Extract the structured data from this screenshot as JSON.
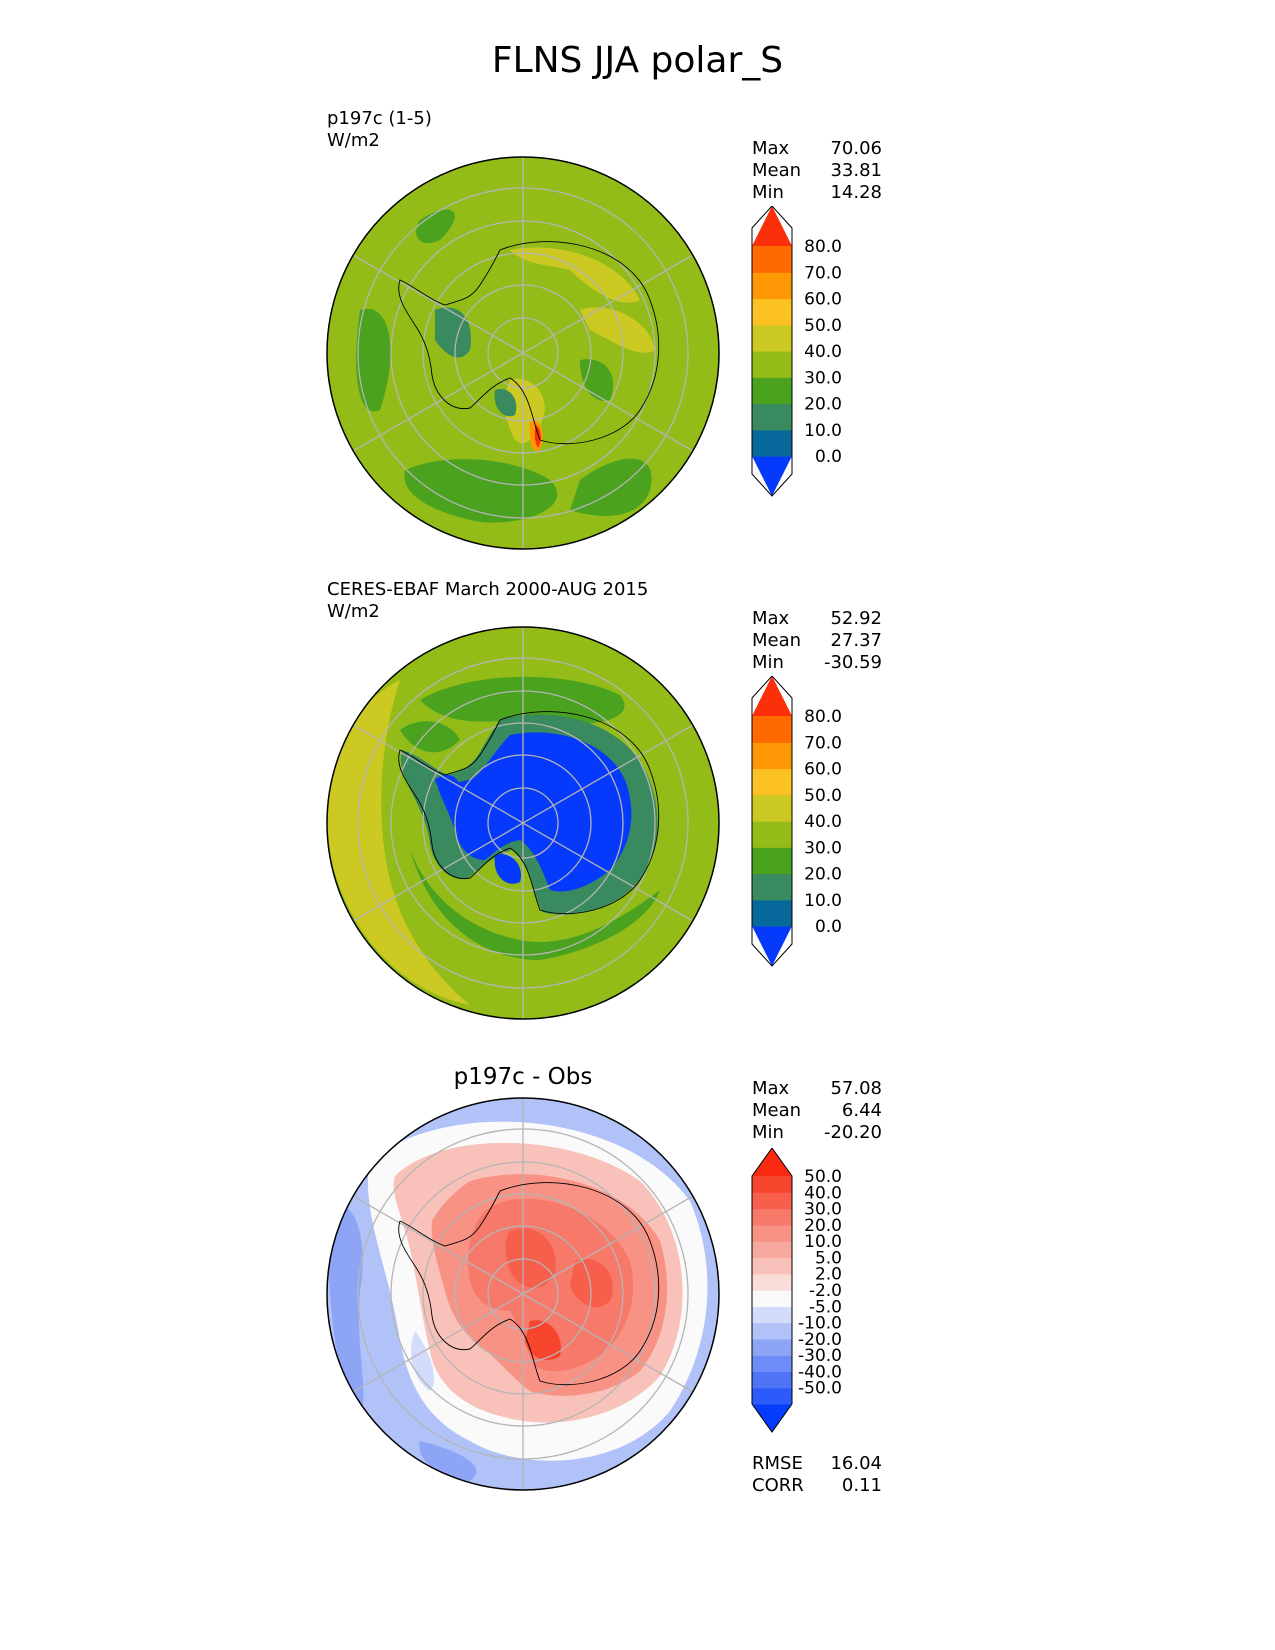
{
  "title": "FLNS JJA polar_S",
  "colors": {
    "coast": "#000000",
    "grid": "#b5b5b5",
    "outline": "#000000",
    "abs_scale": [
      "#0539fb",
      "#07689b",
      "#3a8a60",
      "#4aa21e",
      "#93bc18",
      "#cdc923",
      "#fcc123",
      "#fe9905",
      "#ff6a00",
      "#fc2f0b"
    ],
    "diff_scale": [
      "#043cfd",
      "#2d5afa",
      "#4f74f8",
      "#6e8cf7",
      "#8ea5f6",
      "#b1c2f8",
      "#d3dcfb",
      "#fafafa",
      "#fadcd8",
      "#f8c2ba",
      "#f8a99f",
      "#f79284",
      "#f6796a",
      "#f75e4b",
      "#f8452e",
      "#fa2a10"
    ]
  },
  "chart_data": [
    {
      "type": "heatmap",
      "projection": "south-polar-stereographic",
      "title": "p197c (1-5)",
      "units": "W/m2",
      "stats": {
        "max": "70.06",
        "mean": "33.81",
        "min": "14.28"
      },
      "colorbar": {
        "levels": [
          "0.0",
          "10.0",
          "20.0",
          "30.0",
          "40.0",
          "50.0",
          "60.0",
          "70.0",
          "80.0"
        ],
        "extend": "both"
      },
      "field": {
        "dominant_range": "30-40",
        "continent_range": "30-50",
        "notable": "local maximum 60-70 near Antarctic Peninsula base / Ross Sea coast"
      }
    },
    {
      "type": "heatmap",
      "projection": "south-polar-stereographic",
      "title": "CERES-EBAF March 2000-AUG 2015",
      "units": "W/m2",
      "stats": {
        "max": "52.92",
        "mean": "27.37",
        "min": "-30.59"
      },
      "colorbar": {
        "levels": [
          "0.0",
          "10.0",
          "20.0",
          "30.0",
          "40.0",
          "50.0",
          "60.0",
          "70.0",
          "80.0"
        ],
        "extend": "both"
      },
      "field": {
        "dominant_range": "30-40",
        "continent_range": "below 0 to 20",
        "notable": "40-50 band over South Atlantic / Indian Ocean sector"
      }
    },
    {
      "type": "heatmap",
      "projection": "south-polar-stereographic",
      "title": "p197c - Obs",
      "units": "",
      "stats": {
        "max": "57.08",
        "mean": "6.44",
        "min": "-20.20"
      },
      "metrics": {
        "rmse_label": "RMSE",
        "rmse": "16.04",
        "corr_label": "CORR",
        "corr": "0.11"
      },
      "colorbar": {
        "levels": [
          "-50.0",
          "-40.0",
          "-30.0",
          "-20.0",
          "-10.0",
          "-5.0",
          "-2.0",
          "2.0",
          "5.0",
          "10.0",
          "20.0",
          "30.0",
          "40.0",
          "50.0"
        ],
        "extend": "both"
      },
      "field": {
        "continent_range": "20-50 positive",
        "ocean_range": "-2 to -20 negative",
        "notable": "strongest positive bias over East Antarctica and Ross Ice Shelf"
      }
    }
  ],
  "labels": {
    "max": "Max",
    "mean": "Mean",
    "min": "Min"
  }
}
